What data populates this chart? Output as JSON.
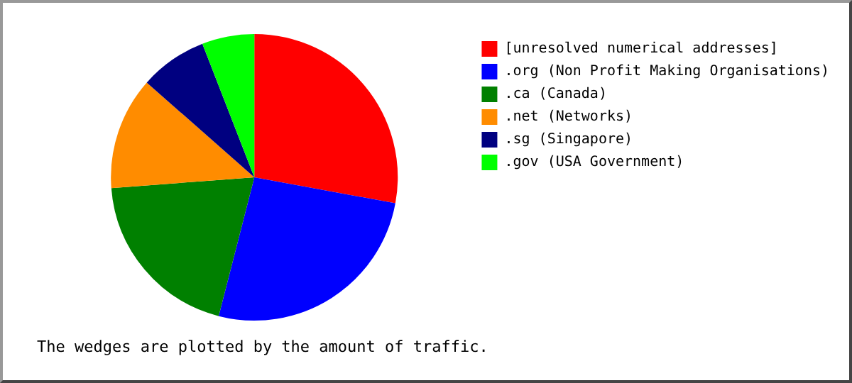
{
  "chart_data": {
    "type": "pie",
    "categories": [
      "[unresolved numerical addresses]",
      ".org (Non Profit Making Organisations)",
      ".ca (Canada)",
      ".net (Networks)",
      ".sg (Singapore)",
      ".gov (USA Government)"
    ],
    "values": [
      27.9,
      26.1,
      19.8,
      12.7,
      7.6,
      5.9
    ],
    "colors": [
      "#ff0000",
      "#0000ff",
      "#008000",
      "#ff8c00",
      "#000080",
      "#00ff00"
    ],
    "legend": "right",
    "annotations": [
      "The wedges are plotted by the amount of traffic."
    ]
  }
}
